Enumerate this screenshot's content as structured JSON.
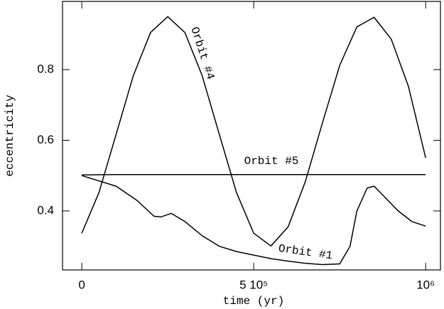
{
  "chart_data": {
    "type": "line",
    "xlabel": "time (yr)",
    "ylabel": "eccentricity",
    "xlim": [
      -56000,
      1043000
    ],
    "ylim": [
      0.233,
      0.993
    ],
    "xticks": [
      0,
      {
        "value": 500000,
        "label": "5 10⁵"
      },
      {
        "value": 1000000,
        "label": "10⁶"
      }
    ],
    "yticks": [
      0.4,
      0.6,
      0.8
    ],
    "series": [
      {
        "name": "Orbit #4",
        "color": "#000000",
        "x": [
          0,
          50000,
          100000,
          150000,
          200000,
          250000,
          300000,
          350000,
          400000,
          450000,
          500000,
          550000,
          600000,
          650000,
          700000,
          750000,
          800000,
          850000,
          900000,
          950000,
          1000000
        ],
        "values": [
          0.337,
          0.452,
          0.617,
          0.783,
          0.905,
          0.95,
          0.905,
          0.783,
          0.617,
          0.452,
          0.337,
          0.301,
          0.355,
          0.483,
          0.65,
          0.812,
          0.921,
          0.948,
          0.886,
          0.752,
          0.55
        ]
      },
      {
        "name": "Orbit #5",
        "color": "#000000",
        "x": [
          0,
          100000,
          200000,
          300000,
          400000,
          500000,
          600000,
          700000,
          800000,
          900000,
          1000000
        ],
        "values": [
          0.502,
          0.503,
          0.503,
          0.503,
          0.503,
          0.503,
          0.503,
          0.503,
          0.503,
          0.503,
          0.503
        ]
      },
      {
        "name": "Orbit #1",
        "color": "#000000",
        "x": [
          0,
          100000,
          160000,
          210000,
          230000,
          260000,
          300000,
          350000,
          400000,
          450000,
          500000,
          550000,
          600000,
          650000,
          700000,
          750000,
          780000,
          800000,
          830000,
          850000,
          880000,
          920000,
          960000,
          1000000
        ],
        "values": [
          0.5,
          0.47,
          0.43,
          0.385,
          0.383,
          0.393,
          0.37,
          0.33,
          0.3,
          0.285,
          0.275,
          0.265,
          0.258,
          0.252,
          0.248,
          0.25,
          0.3,
          0.4,
          0.465,
          0.47,
          0.44,
          0.4,
          0.37,
          0.357
        ]
      }
    ]
  }
}
